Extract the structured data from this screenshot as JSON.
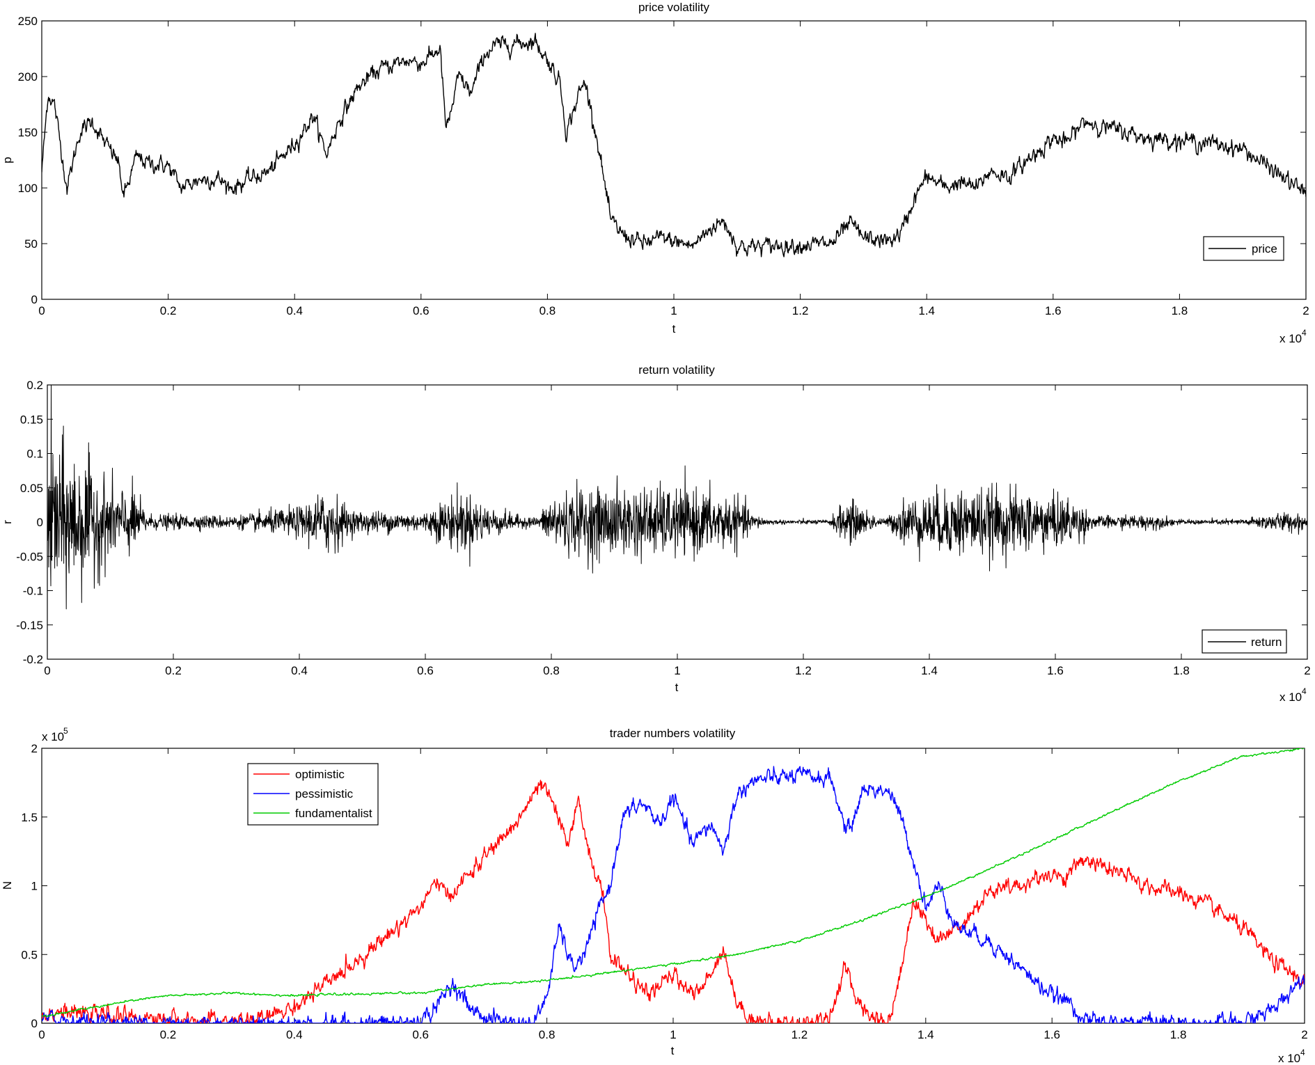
{
  "chart_data": [
    {
      "type": "line",
      "title": "price volatility",
      "xlabel": "t",
      "ylabel": "p",
      "x_exponent": "x 10",
      "x_exponent_power": "4",
      "xlim": [
        0,
        2
      ],
      "ylim": [
        0,
        250
      ],
      "xticks": [
        "0",
        "0.2",
        "0.4",
        "0.6",
        "0.8",
        "1",
        "1.2",
        "1.4",
        "1.6",
        "1.8",
        "2"
      ],
      "yticks": [
        "0",
        "50",
        "100",
        "150",
        "200",
        "250"
      ],
      "legend": "bottom-right",
      "series": [
        {
          "name": "price",
          "color": "#000000",
          "x": [
            0,
            0.01,
            0.02,
            0.04,
            0.06,
            0.08,
            0.1,
            0.12,
            0.13,
            0.15,
            0.17,
            0.2,
            0.22,
            0.25,
            0.28,
            0.3,
            0.33,
            0.36,
            0.4,
            0.43,
            0.45,
            0.47,
            0.5,
            0.53,
            0.55,
            0.58,
            0.6,
            0.63,
            0.64,
            0.66,
            0.68,
            0.7,
            0.72,
            0.75,
            0.78,
            0.8,
            0.82,
            0.83,
            0.85,
            0.86,
            0.88,
            0.9,
            0.92,
            0.95,
            0.98,
            1.0,
            1.03,
            1.06,
            1.08,
            1.1,
            1.12,
            1.15,
            1.2,
            1.25,
            1.28,
            1.3,
            1.34,
            1.36,
            1.38,
            1.4,
            1.43,
            1.45,
            1.48,
            1.5,
            1.53,
            1.56,
            1.6,
            1.62,
            1.65,
            1.7,
            1.75,
            1.8,
            1.85,
            1.9,
            1.95,
            2.0
          ],
          "y": [
            115,
            185,
            175,
            100,
            150,
            160,
            140,
            125,
            92,
            128,
            122,
            120,
            100,
            108,
            108,
            100,
            108,
            115,
            140,
            165,
            130,
            160,
            190,
            205,
            210,
            215,
            212,
            225,
            150,
            200,
            185,
            220,
            228,
            230,
            232,
            215,
            195,
            150,
            185,
            195,
            140,
            70,
            58,
            50,
            55,
            52,
            48,
            65,
            70,
            48,
            47,
            48,
            49,
            50,
            68,
            55,
            52,
            60,
            90,
            110,
            100,
            105,
            100,
            115,
            110,
            125,
            145,
            140,
            160,
            152,
            145,
            143,
            140,
            135,
            115,
            95
          ]
        }
      ]
    },
    {
      "type": "line",
      "title": "return volatility",
      "xlabel": "t",
      "ylabel": "r",
      "x_exponent": "x 10",
      "x_exponent_power": "4",
      "xlim": [
        0,
        2
      ],
      "ylim": [
        -0.2,
        0.2
      ],
      "xticks": [
        "0",
        "0.2",
        "0.4",
        "0.6",
        "0.8",
        "1",
        "1.2",
        "1.4",
        "1.6",
        "1.8",
        "2"
      ],
      "yticks": [
        "-0.2",
        "-0.15",
        "-0.1",
        "-0.05",
        "0",
        "0.05",
        "0.1",
        "0.15",
        "0.2"
      ],
      "legend": "bottom-right",
      "series": [
        {
          "name": "return",
          "color": "#000000",
          "envelope_x": [
            0,
            0.005,
            0.02,
            0.05,
            0.1,
            0.14,
            0.16,
            0.3,
            0.4,
            0.45,
            0.48,
            0.6,
            0.63,
            0.66,
            0.7,
            0.75,
            0.78,
            0.8,
            0.85,
            0.95,
            1.05,
            1.1,
            1.12,
            1.15,
            1.24,
            1.27,
            1.3,
            1.33,
            1.36,
            1.45,
            1.55,
            1.63,
            1.66,
            1.7,
            1.75,
            1.8,
            1.9,
            1.95,
            2.0
          ],
          "envelope_amplitude": [
            0.02,
            0.14,
            0.1,
            0.09,
            0.05,
            0.04,
            0.01,
            0.008,
            0.02,
            0.045,
            0.015,
            0.012,
            0.03,
            0.04,
            0.02,
            0.008,
            0.006,
            0.035,
            0.045,
            0.045,
            0.04,
            0.03,
            0.01,
            0.003,
            0.003,
            0.03,
            0.015,
            0.003,
            0.03,
            0.045,
            0.04,
            0.03,
            0.008,
            0.008,
            0.01,
            0.003,
            0.004,
            0.012,
            0.012
          ]
        }
      ]
    },
    {
      "type": "line",
      "title": "trader numbers volatility",
      "xlabel": "t",
      "ylabel": "N",
      "x_exponent": "x 10",
      "x_exponent_power": "4",
      "y_exponent": "x 10",
      "y_exponent_power": "5",
      "xlim": [
        0,
        2
      ],
      "ylim": [
        0,
        2
      ],
      "xticks": [
        "0",
        "0.2",
        "0.4",
        "0.6",
        "0.8",
        "1",
        "1.2",
        "1.4",
        "1.6",
        "1.8",
        "2"
      ],
      "yticks": [
        "0",
        "0.5",
        "1",
        "1.5",
        "2"
      ],
      "legend": "top-left",
      "series": [
        {
          "name": "optimistic",
          "color": "#ff0000",
          "x": [
            0,
            0.02,
            0.05,
            0.1,
            0.15,
            0.2,
            0.25,
            0.3,
            0.35,
            0.4,
            0.45,
            0.5,
            0.55,
            0.6,
            0.63,
            0.64,
            0.66,
            0.7,
            0.75,
            0.79,
            0.81,
            0.83,
            0.85,
            0.87,
            0.89,
            0.9,
            0.93,
            0.96,
            1.0,
            1.04,
            1.08,
            1.1,
            1.12,
            1.15,
            1.2,
            1.25,
            1.27,
            1.3,
            1.34,
            1.36,
            1.38,
            1.4,
            1.42,
            1.45,
            1.48,
            1.5,
            1.55,
            1.6,
            1.62,
            1.65,
            1.7,
            1.75,
            1.8,
            1.85,
            1.9,
            1.95,
            2.0
          ],
          "y": [
            0.06,
            0.09,
            0.07,
            0.06,
            0.04,
            0.03,
            0.015,
            0.01,
            0.03,
            0.12,
            0.28,
            0.46,
            0.65,
            0.85,
            1.05,
            0.9,
            1.0,
            1.2,
            1.45,
            1.73,
            1.6,
            1.3,
            1.6,
            1.2,
            0.9,
            0.5,
            0.35,
            0.2,
            0.35,
            0.2,
            0.55,
            0.15,
            0.05,
            0.0,
            0.0,
            0.05,
            0.4,
            0.1,
            0.0,
            0.35,
            0.9,
            0.75,
            0.6,
            0.7,
            0.85,
            0.95,
            1.0,
            1.1,
            1.05,
            1.2,
            1.1,
            1.0,
            0.95,
            0.85,
            0.7,
            0.45,
            0.3
          ]
        },
        {
          "name": "pessimistic",
          "color": "#0000ff",
          "x": [
            0,
            0.02,
            0.05,
            0.1,
            0.2,
            0.3,
            0.4,
            0.5,
            0.6,
            0.63,
            0.65,
            0.68,
            0.7,
            0.75,
            0.78,
            0.8,
            0.82,
            0.84,
            0.86,
            0.88,
            0.9,
            0.92,
            0.95,
            0.98,
            1.0,
            1.03,
            1.06,
            1.08,
            1.1,
            1.12,
            1.15,
            1.2,
            1.25,
            1.27,
            1.28,
            1.3,
            1.34,
            1.36,
            1.38,
            1.4,
            1.42,
            1.45,
            1.5,
            1.55,
            1.6,
            1.63,
            1.65,
            1.7,
            1.75,
            1.8,
            1.9,
            1.95,
            2.0
          ],
          "y": [
            0.02,
            0.03,
            0.02,
            0.01,
            0.0,
            0.0,
            0.0,
            0.0,
            0.01,
            0.15,
            0.3,
            0.1,
            0.05,
            0.0,
            0.0,
            0.2,
            0.7,
            0.4,
            0.5,
            0.8,
            1.0,
            1.5,
            1.6,
            1.45,
            1.65,
            1.3,
            1.45,
            1.25,
            1.65,
            1.75,
            1.78,
            1.8,
            1.78,
            1.45,
            1.4,
            1.7,
            1.7,
            1.5,
            1.2,
            0.85,
            1.0,
            0.7,
            0.6,
            0.4,
            0.2,
            0.15,
            0.02,
            0.0,
            0.02,
            0.0,
            0.0,
            0.1,
            0.35
          ]
        },
        {
          "name": "fundamentalist",
          "color": "#00cc00",
          "x": [
            0,
            0.05,
            0.1,
            0.15,
            0.2,
            0.25,
            0.3,
            0.35,
            0.4,
            0.45,
            0.5,
            0.55,
            0.6,
            0.65,
            0.7,
            0.8,
            0.9,
            1.0,
            1.1,
            1.2,
            1.3,
            1.4,
            1.5,
            1.6,
            1.7,
            1.8,
            1.9,
            2.0
          ],
          "y": [
            0.05,
            0.09,
            0.13,
            0.17,
            0.2,
            0.21,
            0.22,
            0.21,
            0.2,
            0.21,
            0.21,
            0.22,
            0.22,
            0.25,
            0.28,
            0.31,
            0.37,
            0.43,
            0.5,
            0.6,
            0.75,
            0.92,
            1.12,
            1.33,
            1.55,
            1.76,
            1.94,
            2.0
          ]
        }
      ]
    }
  ]
}
